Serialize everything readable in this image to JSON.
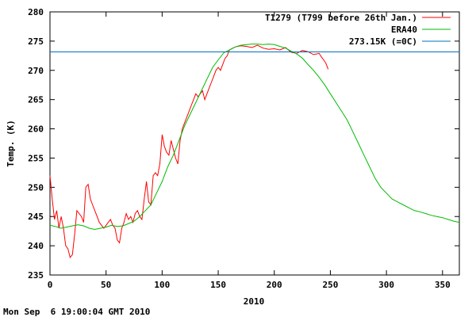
{
  "chart_data": {
    "type": "line",
    "title": "",
    "xlabel": "2010",
    "ylabel": "Temp. (K)",
    "xlim": [
      0,
      365
    ],
    "ylim": [
      235,
      280
    ],
    "x_ticks": [
      0,
      50,
      100,
      150,
      200,
      250,
      300,
      350
    ],
    "y_ticks": [
      235,
      240,
      245,
      250,
      255,
      260,
      265,
      270,
      275,
      280
    ],
    "legend_position": "top-right",
    "grid": false,
    "footer": "Mon Sep  6 19:00:04 GMT 2010",
    "series": [
      {
        "name": "T1279 (T799 before 26th Jan.)",
        "color": "#ff0000",
        "x": [
          0,
          2,
          4,
          6,
          8,
          10,
          12,
          14,
          16,
          18,
          20,
          22,
          24,
          26,
          28,
          30,
          32,
          34,
          36,
          38,
          40,
          42,
          44,
          46,
          48,
          50,
          52,
          54,
          56,
          58,
          60,
          62,
          64,
          66,
          68,
          70,
          72,
          74,
          76,
          78,
          80,
          82,
          84,
          86,
          88,
          90,
          92,
          94,
          96,
          98,
          100,
          102,
          104,
          106,
          108,
          110,
          112,
          114,
          116,
          118,
          120,
          122,
          124,
          126,
          128,
          130,
          132,
          134,
          136,
          138,
          140,
          142,
          144,
          146,
          148,
          150,
          152,
          154,
          156,
          158,
          160,
          165,
          170,
          175,
          180,
          185,
          190,
          195,
          200,
          205,
          210,
          215,
          220,
          225,
          230,
          235,
          240,
          242,
          244,
          246,
          248
        ],
        "values": [
          252,
          248,
          244.5,
          246,
          243,
          245,
          243,
          240,
          239.5,
          238,
          238.5,
          242,
          246,
          245.5,
          245,
          244,
          250,
          250.5,
          248,
          247,
          246,
          245,
          244,
          243.5,
          243,
          243.5,
          244,
          244.5,
          243.5,
          243,
          241,
          240.5,
          243,
          244,
          245.5,
          244.5,
          245,
          244,
          245.5,
          246,
          245,
          244.5,
          248,
          251,
          247.5,
          247,
          252,
          252.5,
          252,
          254,
          259,
          257,
          256,
          255.5,
          258,
          256.5,
          255,
          254,
          258,
          260,
          261,
          262,
          263,
          264,
          265,
          266,
          265.5,
          266,
          266.5,
          265,
          266,
          267,
          268,
          269,
          270,
          270.5,
          270,
          271,
          272,
          272.5,
          273.5,
          274,
          274.2,
          274.1,
          273.9,
          274.3,
          273.8,
          273.6,
          273.7,
          273.5,
          273.9,
          273.1,
          272.9,
          273.4,
          273.2,
          272.7,
          272.9,
          272.3,
          271.8,
          271.2,
          270.2
        ]
      },
      {
        "name": "ERA40",
        "color": "#00bb00",
        "x": [
          0,
          5,
          10,
          15,
          20,
          25,
          30,
          35,
          40,
          45,
          50,
          55,
          60,
          65,
          70,
          75,
          80,
          85,
          90,
          95,
          100,
          105,
          110,
          115,
          120,
          125,
          130,
          135,
          140,
          145,
          150,
          155,
          160,
          165,
          170,
          175,
          180,
          185,
          190,
          195,
          200,
          205,
          210,
          215,
          220,
          225,
          230,
          235,
          240,
          245,
          250,
          255,
          260,
          265,
          270,
          275,
          280,
          285,
          290,
          295,
          300,
          305,
          310,
          315,
          320,
          325,
          330,
          335,
          340,
          345,
          350,
          355,
          360,
          365
        ],
        "values": [
          243.5,
          243.3,
          243,
          243.2,
          243.4,
          243.6,
          243.4,
          243,
          242.8,
          243,
          243.2,
          243.5,
          243.3,
          243.4,
          243.8,
          244.2,
          245,
          246,
          247,
          249,
          251,
          253.5,
          255.5,
          258,
          260.5,
          262.5,
          264.5,
          266.5,
          268.5,
          270.5,
          271.8,
          273,
          273.5,
          274,
          274.3,
          274.4,
          274.5,
          274.5,
          274.4,
          274.5,
          274.4,
          274.1,
          273.8,
          273.3,
          272.8,
          272.1,
          271,
          270,
          268.8,
          267.5,
          266,
          264.5,
          263,
          261.5,
          259.5,
          257.5,
          255.5,
          253.5,
          251.5,
          250,
          249,
          248,
          247.5,
          247,
          246.5,
          246,
          245.8,
          245.5,
          245.2,
          245,
          244.8,
          244.5,
          244.2,
          244
        ]
      },
      {
        "name": "273.15K (=0C)",
        "color": "#0070c0",
        "x": [
          0,
          365
        ],
        "values": [
          273.15,
          273.15
        ]
      }
    ]
  }
}
